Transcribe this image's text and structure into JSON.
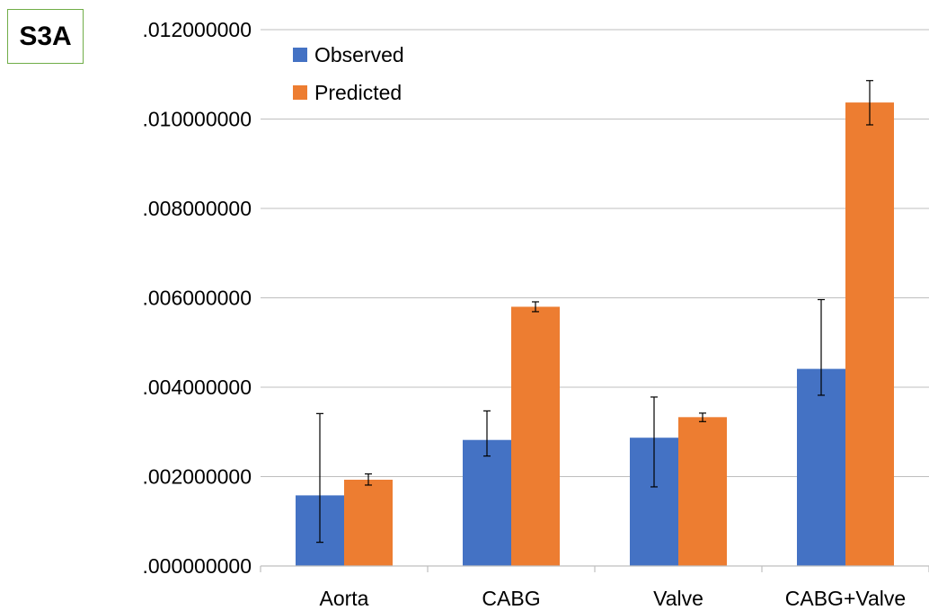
{
  "panel_label": "S3A",
  "colors": {
    "observed": "#4472c4",
    "predicted": "#ed7d31",
    "grid": "#bfbfbf",
    "axis": "#bfbfbf",
    "error_bar": "#000000"
  },
  "chart_data": {
    "type": "bar",
    "title": "",
    "xlabel": "",
    "ylabel": "",
    "categories": [
      "Aorta",
      "CABG",
      "Valve",
      "CABG+Valve"
    ],
    "ylim": [
      0,
      0.012
    ],
    "yticks": [
      0,
      0.002,
      0.004,
      0.006,
      0.008,
      0.01,
      0.012
    ],
    "ytick_labels": [
      ".000000000",
      ".002000000",
      ".004000000",
      ".006000000",
      ".008000000",
      ".010000000",
      ".012000000"
    ],
    "grid": true,
    "legend": "top-left",
    "series": [
      {
        "name": "Observed",
        "color": "#4472c4",
        "values": [
          0.00158,
          0.00282,
          0.00287,
          0.00441
        ],
        "error_low": [
          0.00053,
          0.00246,
          0.00177,
          0.00382
        ],
        "error_high": [
          0.00341,
          0.00347,
          0.00378,
          0.00596
        ]
      },
      {
        "name": "Predicted",
        "color": "#ed7d31",
        "values": [
          0.00193,
          0.0058,
          0.00333,
          0.01037
        ],
        "error_low": [
          0.00181,
          0.00569,
          0.00323,
          0.00987
        ],
        "error_high": [
          0.00206,
          0.00591,
          0.00342,
          0.01086
        ]
      }
    ]
  }
}
